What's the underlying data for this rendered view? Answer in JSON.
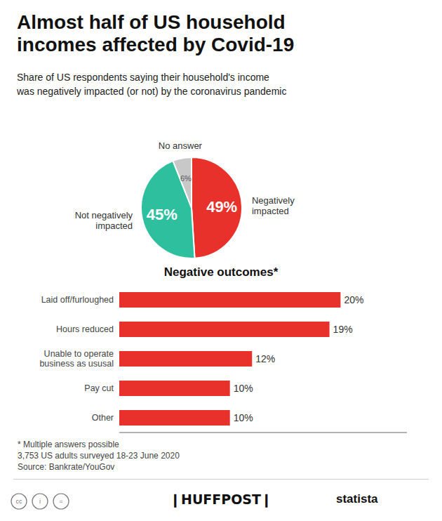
{
  "chart_data": [
    {
      "type": "pie",
      "title": "Almost half of US household\nincomes affected by Covid-19",
      "subtitle": "Share of US respondents saying their household's income\nwas negatively impacted (or not) by the coronavirus pandemic",
      "categories": [
        "Negatively\nimpacted",
        "Not negatively\nimpacted",
        "No answer"
      ],
      "values": [
        49,
        45,
        6
      ],
      "value_labels": [
        "49%",
        "45%",
        "6%"
      ],
      "colors": [
        "#e8312a",
        "#2dbf9e",
        "#c8c8c8"
      ],
      "data_labels": true,
      "annotations": [
        "cc",
        "i",
        "=",
        "❙HUFFPOST❙",
        "statista"
      ]
    },
    {
      "type": "bar",
      "title": "Negative outcomes*",
      "categories": [
        "Laid off/furloughed",
        "Hours reduced",
        "Unable to operate\nbusiness as ususal",
        "Pay cut",
        "Other"
      ],
      "values": [
        20,
        19,
        12,
        10,
        10
      ],
      "value_labels": [
        "20%",
        "19%",
        "12%",
        "10%",
        "10%"
      ],
      "color": "#e8312a",
      "orientation": "horizontal",
      "xlim": [
        0,
        26
      ],
      "tick_labels": "y",
      "data_labels": true,
      "grid": false,
      "annotations": [
        "* Multiple answers possible",
        "3,753 US adults surveyed 18-23 June 2020",
        "Source: Bankrate/YouGov"
      ]
    }
  ]
}
